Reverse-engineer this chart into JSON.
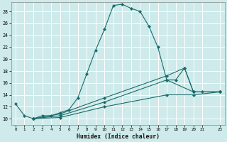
{
  "xlabel": "Humidex (Indice chaleur)",
  "bg_color": "#ceeaea",
  "grid_color": "#ffffff",
  "line_color": "#1a6b6b",
  "xlim": [
    -0.5,
    23.5
  ],
  "ylim": [
    9,
    29.5
  ],
  "xtick_labels": [
    "0",
    "1",
    "2",
    "3",
    "4",
    "5",
    "6",
    "7",
    "8",
    "9",
    "10",
    "11",
    "12",
    "13",
    "14",
    "15",
    "16",
    "17",
    "18",
    "19",
    "20",
    "21",
    "23"
  ],
  "xtick_pos": [
    0,
    1,
    2,
    3,
    4,
    5,
    6,
    7,
    8,
    9,
    10,
    11,
    12,
    13,
    14,
    15,
    16,
    17,
    18,
    19,
    20,
    21,
    23
  ],
  "yticks": [
    10,
    12,
    14,
    16,
    18,
    20,
    22,
    24,
    26,
    28
  ],
  "series": [
    {
      "x": [
        0,
        1,
        2,
        3,
        4,
        5,
        6,
        7,
        8,
        9,
        10,
        11,
        12,
        13,
        14,
        15,
        16,
        17,
        18,
        19,
        20,
        21,
        23
      ],
      "y": [
        12.5,
        10.5,
        10.0,
        10.5,
        10.5,
        11.0,
        11.5,
        13.5,
        17.5,
        21.5,
        25.0,
        29.0,
        29.2,
        28.5,
        28.0,
        25.5,
        22.0,
        16.5,
        16.5,
        18.5,
        14.5,
        14.5,
        14.5
      ]
    },
    {
      "x": [
        2,
        5,
        10,
        17,
        19,
        20,
        23
      ],
      "y": [
        10.0,
        10.8,
        13.5,
        17.2,
        18.5,
        14.5,
        14.5
      ]
    },
    {
      "x": [
        2,
        5,
        10,
        17,
        20,
        23
      ],
      "y": [
        10.0,
        10.5,
        12.8,
        16.5,
        14.5,
        14.5
      ]
    },
    {
      "x": [
        2,
        5,
        10,
        17,
        20,
        23
      ],
      "y": [
        10.0,
        10.2,
        12.0,
        14.0,
        14.0,
        14.5
      ]
    }
  ]
}
